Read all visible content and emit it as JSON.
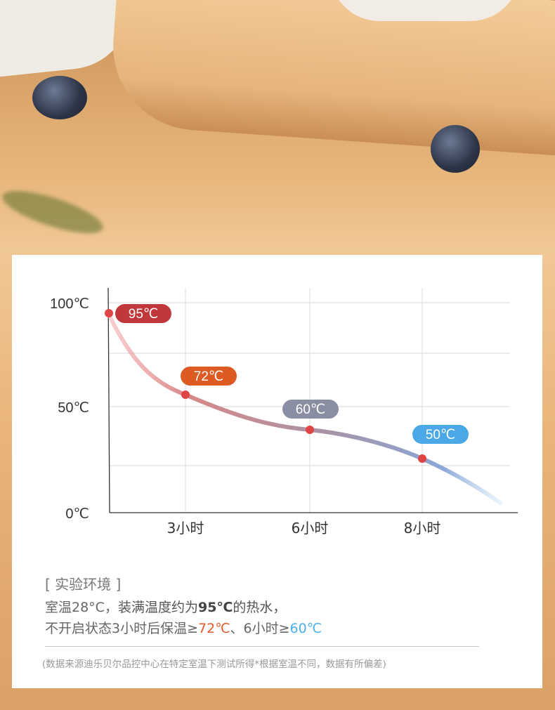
{
  "chart_data": {
    "type": "line",
    "x": [
      0,
      3,
      6,
      8
    ],
    "xlabels": [
      "3小时",
      "6小时",
      "8小时"
    ],
    "yticks": [
      "100℃",
      "50℃",
      "0℃"
    ],
    "ylim": [
      0,
      100
    ],
    "grid": true,
    "points": [
      {
        "x": 0,
        "y": 95,
        "label": "95℃",
        "color": "#c0373c"
      },
      {
        "x": 3,
        "y": 72,
        "label": "72℃",
        "color": "#dd5a22"
      },
      {
        "x": 6,
        "y": 60,
        "label": "60℃",
        "color": "#8a8ea3"
      },
      {
        "x": 8,
        "y": 50,
        "label": "50℃",
        "color": "#4aa8e6"
      }
    ],
    "point_color": "#e04545"
  },
  "env": {
    "title": "[ 实验环境 ]",
    "l1a": "室温28°C，",
    "l1b": "装满温度约为",
    "l1c": "95℃",
    "l1d": "的热水，",
    "l2a": "不开启状态3小时后保温≥",
    "l2b": "72℃",
    "l2c": "、6小时≥",
    "l2d": "60℃",
    "note": "(数据来源迪乐贝尔品控中心在特定室温下测试所得*根据室温不同，数据有所偏差)"
  }
}
